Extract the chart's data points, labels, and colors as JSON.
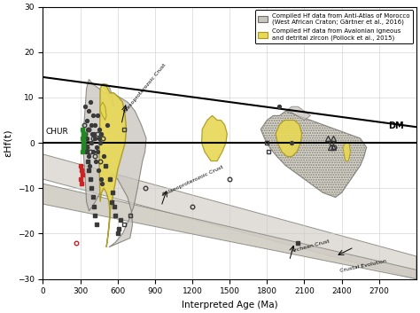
{
  "xlim": [
    0,
    3000
  ],
  "ylim": [
    -30,
    30
  ],
  "xlabel": "Interpreted Age (Ma)",
  "ylabel": "εHf(t)",
  "chur_label": "CHUR",
  "dm_label": "DM",
  "background_color": "#ffffff",
  "plot_bg": "#ffffff",
  "grid_color": "#cccccc",
  "dm_line": [
    [
      0,
      14.5
    ],
    [
      3000,
      3.5
    ]
  ],
  "legend_labels": [
    "Compiled Hf data from Anti-Atlas of Morocco\n(West African Craton; Gärtner et al., 2016)",
    "Compiled Hf data from Avalonian igneous\nand detrital zircon (Pollock et al., 2015)"
  ],
  "gray_color": "#c8c4be",
  "gray_edge": "#706e68",
  "yellow_color": "#e8d855",
  "yellow_edge": "#a89820",
  "band_color": "#dedad4",
  "band2_color": "#d0ccc4",
  "scatter_dark_filled_circ": [
    [
      340,
      8
    ],
    [
      350,
      5
    ],
    [
      360,
      3
    ],
    [
      370,
      7
    ],
    [
      380,
      9
    ],
    [
      390,
      4
    ],
    [
      400,
      6
    ],
    [
      410,
      2
    ],
    [
      420,
      1
    ],
    [
      430,
      -1
    ],
    [
      440,
      -2
    ],
    [
      450,
      3
    ],
    [
      460,
      0
    ],
    [
      470,
      2
    ],
    [
      345,
      -1
    ],
    [
      355,
      1
    ],
    [
      365,
      -3
    ],
    [
      375,
      -5
    ],
    [
      385,
      0
    ],
    [
      395,
      2
    ],
    [
      405,
      -2
    ],
    [
      415,
      4
    ],
    [
      425,
      -4
    ],
    [
      435,
      6
    ],
    [
      445,
      -6
    ],
    [
      455,
      1
    ],
    [
      465,
      -8
    ],
    [
      475,
      -9
    ],
    [
      485,
      -3
    ],
    [
      520,
      4
    ],
    [
      1900,
      8
    ],
    [
      2000,
      0
    ]
  ],
  "scatter_dark_open_circ": [
    [
      330,
      4
    ],
    [
      340,
      2
    ],
    [
      350,
      -1
    ],
    [
      360,
      0
    ],
    [
      370,
      3
    ],
    [
      380,
      -2
    ],
    [
      400,
      1
    ],
    [
      420,
      -3
    ],
    [
      440,
      2
    ],
    [
      460,
      -4
    ],
    [
      480,
      1
    ],
    [
      820,
      -10
    ],
    [
      1200,
      -14
    ],
    [
      1500,
      -8
    ],
    [
      2320,
      0
    ],
    [
      2340,
      -1
    ]
  ],
  "scatter_dark_filled_sq": [
    [
      350,
      -2
    ],
    [
      360,
      -4
    ],
    [
      370,
      -6
    ],
    [
      380,
      -8
    ],
    [
      390,
      -10
    ],
    [
      400,
      -12
    ],
    [
      410,
      -14
    ],
    [
      420,
      -16
    ],
    [
      430,
      -18
    ],
    [
      500,
      -5
    ],
    [
      540,
      -8
    ],
    [
      550,
      -13
    ],
    [
      560,
      -11
    ],
    [
      570,
      -14
    ],
    [
      580,
      -16
    ],
    [
      600,
      -20
    ],
    [
      610,
      -19
    ],
    [
      620,
      -17
    ],
    [
      2050,
      -22
    ]
  ],
  "scatter_dark_open_sq": [
    [
      650,
      -18
    ],
    [
      700,
      -16
    ],
    [
      1800,
      0
    ],
    [
      1810,
      -2
    ],
    [
      650,
      3
    ]
  ],
  "scatter_red_filled_sq": [
    [
      300,
      -5
    ],
    [
      308,
      -6
    ],
    [
      315,
      -7
    ],
    [
      305,
      -8
    ],
    [
      312,
      -9
    ]
  ],
  "scatter_red_open_circ": [
    [
      270,
      -22
    ]
  ],
  "scatter_green_filled_sq": [
    [
      318,
      1
    ],
    [
      322,
      0
    ],
    [
      326,
      -1
    ],
    [
      330,
      2
    ],
    [
      320,
      -2
    ],
    [
      318,
      3
    ],
    [
      322,
      2
    ],
    [
      326,
      1
    ]
  ],
  "scatter_open_triangle": [
    [
      2290,
      1
    ],
    [
      2310,
      -1
    ],
    [
      2330,
      1
    ],
    [
      2330,
      -1
    ]
  ]
}
